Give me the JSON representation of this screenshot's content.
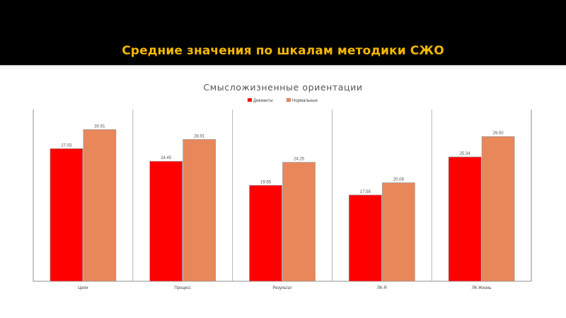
{
  "slide": {
    "title": "Средние значения по шкалам методики СЖО"
  },
  "colors": {
    "header_bg": "#000000",
    "title": "#f5b800",
    "series1": "#ff0000",
    "series2": "#e8875a"
  },
  "chart_data": {
    "type": "bar",
    "title": "Смысложизненные ориентации",
    "legend_position": "top",
    "grid": false,
    "categories": [
      "Цели",
      "Процесс",
      "Результат",
      "ЛК-Я",
      "ЛК-Жизнь"
    ],
    "series": [
      {
        "name": "Девианты",
        "color": "#ff0000",
        "values": [
          27.03,
          24.45,
          19.55,
          17.58,
          25.34
        ],
        "labels": [
          "27.03",
          "24.45",
          "19.55",
          "17.58",
          "25.34"
        ]
      },
      {
        "name": "Нормальные",
        "color": "#e8875a",
        "values": [
          30.91,
          28.91,
          24.25,
          20.08,
          29.5
        ],
        "labels": [
          "30.91",
          "28.91",
          "24.25",
          "20.08",
          "29.50"
        ]
      }
    ],
    "ylim": [
      0,
      35
    ]
  }
}
